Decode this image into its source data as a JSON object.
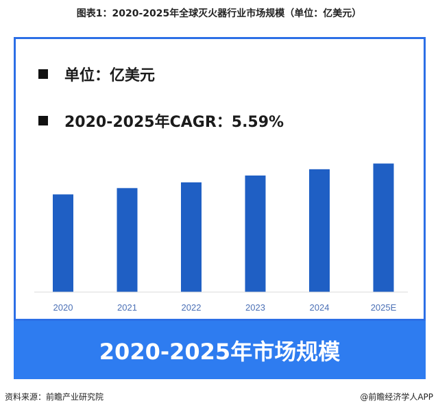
{
  "figure_title": "图表1：2020-2025年全球灭火器行业市场规模（单位：亿美元）",
  "info": {
    "unit_line": "单位：亿美元",
    "cagr_line": "2020-2025年CAGR：5.59%"
  },
  "banner_text": "2020-2025年市场规模",
  "footer": {
    "source": "资料来源：前瞻产业研究院",
    "credit": "@前瞻经济学人APP"
  },
  "colors": {
    "bar": "#1f5fc4",
    "panel_border": "#2c6fe6",
    "banner": "#2e7cf0",
    "axis_label": "#4a6fb5"
  },
  "chart_data": {
    "type": "bar",
    "categories": [
      "2020",
      "2021",
      "2022",
      "2023",
      "2024",
      "2025E"
    ],
    "values": [
      171,
      182,
      192,
      204,
      215,
      225
    ],
    "ylim": [
      0,
      240
    ],
    "grid": false,
    "legend": "none"
  }
}
